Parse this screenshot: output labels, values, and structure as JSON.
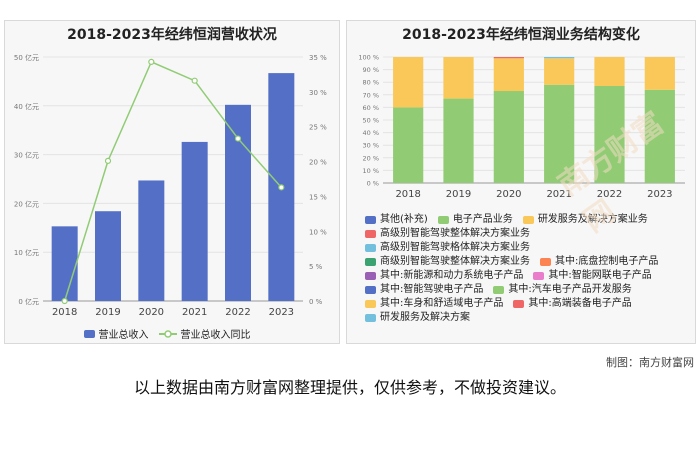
{
  "left_chart": {
    "title": "2018-2023年经纬恒润营收状况",
    "legend": {
      "bar": "营业总收入",
      "line": "营业总收入同比"
    }
  },
  "right_chart": {
    "title": "2018-2023年经纬恒润业务结构变化"
  },
  "chart_data": [
    {
      "type": "bar",
      "title": "2018-2023年经纬恒润营收状况",
      "categories": [
        "2018",
        "2019",
        "2020",
        "2021",
        "2022",
        "2023"
      ],
      "series": [
        {
          "name": "营业总收入",
          "kind": "bar",
          "axis": "left",
          "color": "#5470c6",
          "values": [
            15.3,
            18.4,
            24.7,
            32.6,
            40.2,
            46.7
          ]
        },
        {
          "name": "营业总收入同比",
          "kind": "line",
          "axis": "right",
          "color": "#91cc75",
          "values": [
            0,
            20.1,
            34.3,
            31.6,
            23.3,
            16.3
          ]
        }
      ],
      "y_left": {
        "min": 0,
        "max": 50,
        "step": 10,
        "suffix": " 亿元"
      },
      "y_right": {
        "min": 0,
        "max": 35,
        "step": 5,
        "suffix": " %"
      }
    },
    {
      "type": "bar",
      "stacked": true,
      "percent": true,
      "title": "2018-2023年经纬恒润业务结构变化",
      "categories": [
        "2018",
        "2019",
        "2020",
        "2021",
        "2022",
        "2023"
      ],
      "y_ticks": [
        "0 %",
        "10 %",
        "20 %",
        "30 %",
        "40 %",
        "50 %",
        "60 %",
        "70 %",
        "80 %",
        "90 %",
        "100 %"
      ],
      "series": [
        {
          "name": "电子产品业务",
          "color": "#91cc75",
          "values": [
            60,
            67,
            73,
            78,
            77,
            74
          ]
        },
        {
          "name": "研发服务及解决方案业务",
          "color": "#fac858",
          "values": [
            40,
            33,
            26,
            21,
            23,
            26
          ]
        },
        {
          "name": "高级别智能驾驶整体解决方案业务",
          "color": "#ee6666",
          "values": [
            0,
            0,
            1,
            0,
            0,
            0
          ]
        },
        {
          "name": "高级别智能驾驶格体解决方案业务",
          "color": "#73c0de",
          "values": [
            0,
            0,
            0,
            1,
            0,
            0
          ]
        }
      ],
      "legend": [
        {
          "name": "其他(补充)",
          "color": "#5470c6"
        },
        {
          "name": "电子产品业务",
          "color": "#91cc75"
        },
        {
          "name": "研发服务及解决方案业务",
          "color": "#fac858"
        },
        {
          "name": "高级别智能驾驶整体解决方案业务",
          "color": "#ee6666"
        },
        {
          "name": "高级别智能驾驶格体解决方案业务",
          "color": "#73c0de"
        },
        {
          "name": "商级别智能驾驶整体解决方案业务",
          "color": "#3ba272"
        },
        {
          "name": "其中:底盘控制电子产品",
          "color": "#fc8452"
        },
        {
          "name": "其中:新能源和动力系统电子产品",
          "color": "#9a60b4"
        },
        {
          "name": "其中:智能网联电子产品",
          "color": "#ea7ccc"
        },
        {
          "name": "其中:智能驾驶电子产品",
          "color": "#5470c6"
        },
        {
          "name": "其中:汽车电子产品开发服务",
          "color": "#91cc75"
        },
        {
          "name": "其中:车身和舒适域电子产品",
          "color": "#fac858"
        },
        {
          "name": "其中:高端装备电子产品",
          "color": "#ee6666"
        },
        {
          "name": "研发服务及解决方案",
          "color": "#73c0de"
        }
      ]
    }
  ],
  "footer": {
    "credit": "制图：南方财富网",
    "disclaimer": "以上数据由南方财富网整理提供，仅供参考，不做投资建议。"
  },
  "watermark": {
    "text1": "南方财富网",
    "text2": "Southmoney.com"
  }
}
